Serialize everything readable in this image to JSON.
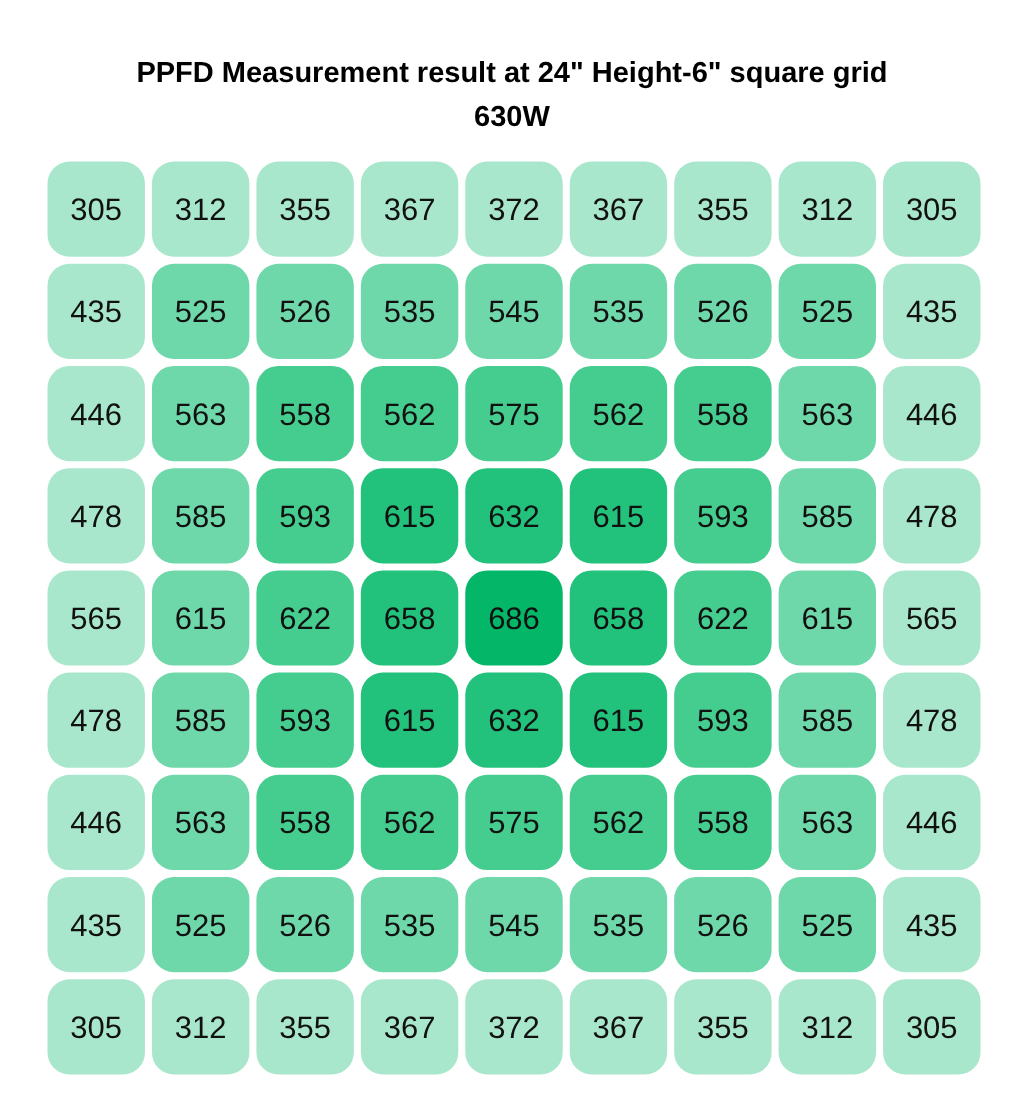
{
  "chart_data": {
    "type": "heatmap",
    "title": "PPFD Measurement result at 24\" Height-6\" square grid",
    "subtitle": "630W",
    "categories": [
      null,
      null,
      null,
      null,
      null,
      null,
      null,
      null,
      null
    ],
    "y_categories": [
      null,
      null,
      null,
      null,
      null,
      null,
      null,
      null,
      null
    ],
    "cells": [
      [
        305,
        312,
        355,
        367,
        372,
        367,
        355,
        312,
        305
      ],
      [
        435,
        525,
        526,
        535,
        545,
        535,
        526,
        525,
        435
      ],
      [
        446,
        563,
        558,
        562,
        575,
        562,
        558,
        563,
        446
      ],
      [
        478,
        585,
        593,
        615,
        632,
        615,
        593,
        585,
        478
      ],
      [
        565,
        615,
        622,
        658,
        686,
        658,
        622,
        615,
        565
      ],
      [
        478,
        585,
        593,
        615,
        632,
        615,
        593,
        585,
        478
      ],
      [
        446,
        563,
        558,
        562,
        575,
        562,
        558,
        563,
        446
      ],
      [
        435,
        525,
        526,
        535,
        545,
        535,
        526,
        525,
        435
      ],
      [
        305,
        312,
        355,
        367,
        372,
        367,
        355,
        312,
        305
      ]
    ],
    "colors": [
      [
        "#a9e7cd",
        "#a9e7cd",
        "#a9e7cd",
        "#a9e7cd",
        "#a9e7cd",
        "#a9e7cd",
        "#a9e7cd",
        "#a9e7cd",
        "#a9e7cd"
      ],
      [
        "#a9e7cd",
        "#6fd8aa",
        "#6fd8aa",
        "#6fd8aa",
        "#6fd8aa",
        "#6fd8aa",
        "#6fd8aa",
        "#6fd8aa",
        "#a9e7cd"
      ],
      [
        "#a9e7cd",
        "#6fd8aa",
        "#45cc8f",
        "#45cc8f",
        "#45cc8f",
        "#45cc8f",
        "#45cc8f",
        "#6fd8aa",
        "#a9e7cd"
      ],
      [
        "#a9e7cd",
        "#6fd8aa",
        "#45cc8f",
        "#22c27c",
        "#22c27c",
        "#22c27c",
        "#45cc8f",
        "#6fd8aa",
        "#a9e7cd"
      ],
      [
        "#a9e7cd",
        "#6fd8aa",
        "#45cc8f",
        "#22c27c",
        "#04b768",
        "#22c27c",
        "#45cc8f",
        "#6fd8aa",
        "#a9e7cd"
      ],
      [
        "#a9e7cd",
        "#6fd8aa",
        "#45cc8f",
        "#22c27c",
        "#22c27c",
        "#22c27c",
        "#45cc8f",
        "#6fd8aa",
        "#a9e7cd"
      ],
      [
        "#a9e7cd",
        "#6fd8aa",
        "#45cc8f",
        "#45cc8f",
        "#45cc8f",
        "#45cc8f",
        "#45cc8f",
        "#6fd8aa",
        "#a9e7cd"
      ],
      [
        "#a9e7cd",
        "#6fd8aa",
        "#6fd8aa",
        "#6fd8aa",
        "#6fd8aa",
        "#6fd8aa",
        "#6fd8aa",
        "#6fd8aa",
        "#a9e7cd"
      ],
      [
        "#a9e7cd",
        "#a9e7cd",
        "#a9e7cd",
        "#a9e7cd",
        "#a9e7cd",
        "#a9e7cd",
        "#a9e7cd",
        "#a9e7cd",
        "#a9e7cd"
      ]
    ],
    "data_labels": true
  }
}
